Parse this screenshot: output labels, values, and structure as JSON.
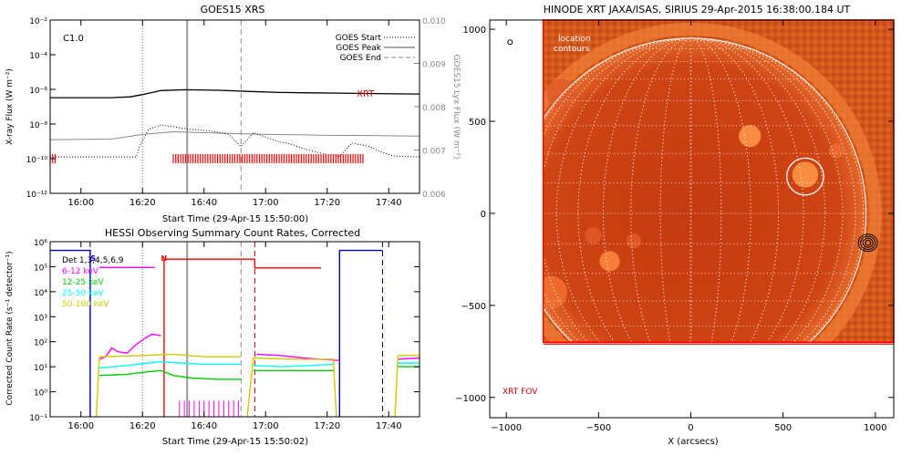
{
  "chart_data": [
    {
      "type": "line",
      "title": "GOES15 XRS",
      "xlabel": "Start Time (29-Apr-15 15:50:00)",
      "ylabel": "X-ray Flux (W m⁻²)",
      "ylabel_right": "GOES15 Lyx Flux (W m⁻²)",
      "x_ticks": [
        "16:00",
        "16:20",
        "16:40",
        "17:00",
        "17:20",
        "17:40"
      ],
      "x_tick_minutes": [
        10,
        30,
        50,
        70,
        90,
        110
      ],
      "xlim_minutes": [
        0,
        120
      ],
      "y_ticks": [
        "10⁻¹²",
        "10⁻¹⁰",
        "10⁻⁸",
        "10⁻⁶",
        "10⁻⁴",
        "10⁻²"
      ],
      "y_tick_exp": [
        -12,
        -10,
        -8,
        -6,
        -4,
        -2
      ],
      "ylim_exp": [
        -12,
        -2
      ],
      "y2_ticks": [
        "0.006",
        "0.007",
        "0.008",
        "0.009",
        "0.010"
      ],
      "y2_values": [
        0.006,
        0.007,
        0.008,
        0.009,
        0.01
      ],
      "y2lim": [
        0.006,
        0.01
      ],
      "class_label": "C1.0",
      "annotation": "XRT",
      "legend": [
        "GOES Start",
        "GOES Peak",
        "GOES End"
      ],
      "legend_location": "top-right",
      "event_lines_minutes": {
        "start": 30,
        "peak": 44.5,
        "end": 62
      },
      "series": [
        {
          "name": "",
          "color": "#000000",
          "x": [
            0,
            20,
            26,
            30,
            36,
            44,
            55,
            65,
            75,
            85,
            100,
            112,
            120
          ],
          "y_exp": [
            -6.48,
            -6.48,
            -6.43,
            -6.3,
            -6.07,
            -6.02,
            -6.05,
            -6.12,
            -6.18,
            -6.2,
            -6.23,
            -6.26,
            -6.27
          ]
        },
        {
          "name": "",
          "color": "#888888",
          "x": [
            0,
            20,
            30,
            40,
            50,
            60,
            70,
            80,
            90,
            100,
            110,
            120
          ],
          "y_exp": [
            -8.9,
            -8.87,
            -8.6,
            -8.45,
            -8.5,
            -8.55,
            -8.6,
            -8.62,
            -8.65,
            -8.66,
            -8.68,
            -8.7
          ]
        },
        {
          "name": "",
          "color": "#000000",
          "x": [
            0,
            28,
            29,
            32,
            36,
            40,
            45,
            52,
            58,
            62,
            66,
            70,
            74,
            78,
            82,
            86,
            90,
            94,
            98,
            104,
            108,
            112,
            120
          ],
          "y_exp": [
            -9.9,
            -9.9,
            -9.3,
            -8.3,
            -8.05,
            -8.15,
            -8.3,
            -8.4,
            -8.6,
            -9.3,
            -8.5,
            -8.75,
            -9.0,
            -9.15,
            -9.4,
            -9.6,
            -9.75,
            -9.85,
            -9.1,
            -9.3,
            -9.65,
            -9.85,
            -9.9
          ]
        }
      ],
      "xrt_bars": [
        {
          "from": 0,
          "to": 2
        },
        {
          "from": 40,
          "to": 102
        }
      ],
      "xrt_bar_y_exp": -10
    },
    {
      "type": "line",
      "title": "HESSI Observing Summary Count Rates, Corrected",
      "xlabel": "Start Time (29-Apr-15 15:50:02)",
      "ylabel": "Corrected Count Rate (s⁻¹ detector⁻¹)",
      "x_ticks": [
        "16:00",
        "16:20",
        "16:40",
        "17:00",
        "17:20",
        "17:40"
      ],
      "x_tick_minutes": [
        10,
        30,
        50,
        70,
        90,
        110
      ],
      "xlim_minutes": [
        0,
        120
      ],
      "y_ticks": [
        "10⁻¹",
        "10⁰",
        "10¹",
        "10²",
        "10³",
        "10⁴",
        "10⁵",
        "10⁶"
      ],
      "y_tick_exp": [
        -1,
        0,
        1,
        2,
        3,
        4,
        5,
        6
      ],
      "ylim_exp": [
        -1,
        6
      ],
      "detectors": "Det 1,3,4,5,6,9",
      "flags": [
        {
          "label": "S",
          "x": 14,
          "color": "#0000cc"
        },
        {
          "label": "N",
          "x": 37,
          "color": "#ff0000"
        }
      ],
      "legend_location": "top-left",
      "legend": [
        {
          "label": "6-12 keV",
          "color": "#ff00ff"
        },
        {
          "label": "12-25 keV",
          "color": "#00cc00"
        },
        {
          "label": "25-50 keV",
          "color": "#00ffff"
        },
        {
          "label": "50-100 keV",
          "color": "#cccc00"
        }
      ],
      "event_lines_minutes": {
        "start": 30,
        "peak": 44.5,
        "end": 62
      },
      "dashed_markers_minutes": [
        {
          "x": 13,
          "color": "#000066"
        },
        {
          "x": 66.5,
          "color": "#cc0000"
        },
        {
          "x": 108,
          "color": "#000066"
        }
      ],
      "series": [
        {
          "name": "blue state",
          "color": "#0000cc",
          "segments": [
            [
              [
                0,
                5.65
              ],
              [
                13,
                5.65
              ],
              [
                13,
                -1
              ]
            ],
            [
              [
                94,
                -1
              ],
              [
                94,
                5.65
              ],
              [
                108,
                5.65
              ]
            ]
          ]
        },
        {
          "name": "red state",
          "color": "#ff0000",
          "segments": [
            [
              [
                37,
                -1
              ],
              [
                37,
                5.3
              ],
              [
                66.5,
                5.3
              ],
              [
                66.5,
                4.95
              ],
              [
                88,
                4.95
              ]
            ]
          ]
        },
        {
          "name": "magenta state",
          "color": "#ff00ff",
          "segments": [
            [
              [
                16,
                4.97
              ],
              [
                34,
                4.97
              ]
            ]
          ]
        },
        {
          "name": "6-12 keV",
          "color": "#ff00ff",
          "segments": [
            [
              [
                16,
                1.3
              ],
              [
                18,
                1.4
              ],
              [
                20,
                1.75
              ],
              [
                22,
                1.6
              ],
              [
                25,
                1.55
              ],
              [
                28,
                1.9
              ],
              [
                31,
                2.15
              ],
              [
                33,
                2.3
              ],
              [
                36,
                2.25
              ]
            ],
            [
              [
                67,
                1.5
              ],
              [
                75,
                1.45
              ],
              [
                82,
                1.35
              ],
              [
                88,
                1.3
              ],
              [
                94,
                1.25
              ]
            ],
            [
              [
                113,
                1.3
              ],
              [
                120,
                1.35
              ]
            ]
          ]
        },
        {
          "name": "12-25 keV",
          "color": "#00cc00",
          "segments": [
            [
              [
                16,
                0.65
              ],
              [
                25,
                0.7
              ],
              [
                32,
                0.8
              ],
              [
                36,
                0.85
              ],
              [
                40,
                0.65
              ],
              [
                46,
                0.55
              ],
              [
                55,
                0.5
              ],
              [
                62,
                0.5
              ]
            ],
            [
              [
                66,
                0.85
              ],
              [
                75,
                0.85
              ],
              [
                84,
                0.85
              ],
              [
                92,
                0.85
              ]
            ],
            [
              [
                113,
                1.0
              ],
              [
                120,
                1.0
              ]
            ]
          ]
        },
        {
          "name": "25-50 keV",
          "color": "#00ffff",
          "segments": [
            [
              [
                16,
                0.95
              ],
              [
                25,
                1.05
              ],
              [
                32,
                1.15
              ],
              [
                36,
                1.2
              ],
              [
                42,
                1.15
              ],
              [
                50,
                1.1
              ],
              [
                62,
                1.1
              ]
            ],
            [
              [
                66,
                1.05
              ],
              [
                75,
                1.0
              ],
              [
                84,
                1.05
              ],
              [
                92,
                1.1
              ]
            ],
            [
              [
                113,
                1.15
              ],
              [
                120,
                1.15
              ]
            ]
          ]
        },
        {
          "name": "50-100 keV",
          "color": "#cccc00",
          "segments": [
            [
              [
                15,
                -1
              ],
              [
                16,
                1.4
              ],
              [
                30,
                1.45
              ],
              [
                40,
                1.5
              ],
              [
                50,
                1.4
              ],
              [
                62,
                1.4
              ]
            ],
            [
              [
                64,
                -1
              ],
              [
                66,
                1.35
              ],
              [
                80,
                1.3
              ],
              [
                92,
                1.3
              ],
              [
                93,
                -1
              ]
            ],
            [
              [
                112,
                -1
              ],
              [
                113,
                1.45
              ],
              [
                120,
                1.45
              ]
            ]
          ]
        }
      ]
    },
    {
      "type": "heatmap",
      "title": "HINODE XRT JAXA/ISAS, SIRIUS 29-Apr-2015 16:38:00.184 UT",
      "xlabel": "X (arcsecs)",
      "x_ticks": [
        "−1000",
        "−500",
        "0",
        "500",
        "1000"
      ],
      "x_tick_values": [
        -1000,
        -500,
        0,
        500,
        1000
      ],
      "y_ticks": [
        "−1000",
        "−500",
        "0",
        "500",
        "1000"
      ],
      "y_tick_values": [
        -1000,
        -500,
        0,
        500,
        1000
      ],
      "xlim": [
        -1090,
        1100
      ],
      "ylim": [
        -1110,
        1050
      ],
      "labels": {
        "location": "location",
        "contours": "contours",
        "fov": "XRT FOV"
      },
      "solar_disk": {
        "center": [
          0,
          0
        ],
        "radius": 950
      },
      "fov": {
        "x": [
          -800,
          1100
        ],
        "y": [
          -700,
          1050
        ]
      },
      "location_circle": {
        "center": [
          620,
          200
        ],
        "radius": 100
      },
      "contour_center": [
        950,
        -160
      ],
      "colors": {
        "accent": "#ff0000",
        "disk": "#c83a10",
        "limb": "#e87030"
      },
      "bright_regions": [
        {
          "x": 320,
          "y": 420,
          "r": 60,
          "color": "#ff9a4a"
        },
        {
          "x": 620,
          "y": 210,
          "r": 70,
          "color": "#ff9a4a"
        },
        {
          "x": 790,
          "y": 340,
          "r": 40,
          "color": "#f06a30"
        },
        {
          "x": -440,
          "y": -260,
          "r": 55,
          "color": "#ff8a40"
        },
        {
          "x": -530,
          "y": -120,
          "r": 45,
          "color": "#e05a28"
        },
        {
          "x": -310,
          "y": -150,
          "r": 40,
          "color": "#e05a28"
        },
        {
          "x": -760,
          "y": -430,
          "r": 90,
          "color": "#f07030"
        },
        {
          "x": -700,
          "y": 650,
          "r": 80,
          "color": "#e05a28"
        }
      ]
    }
  ]
}
